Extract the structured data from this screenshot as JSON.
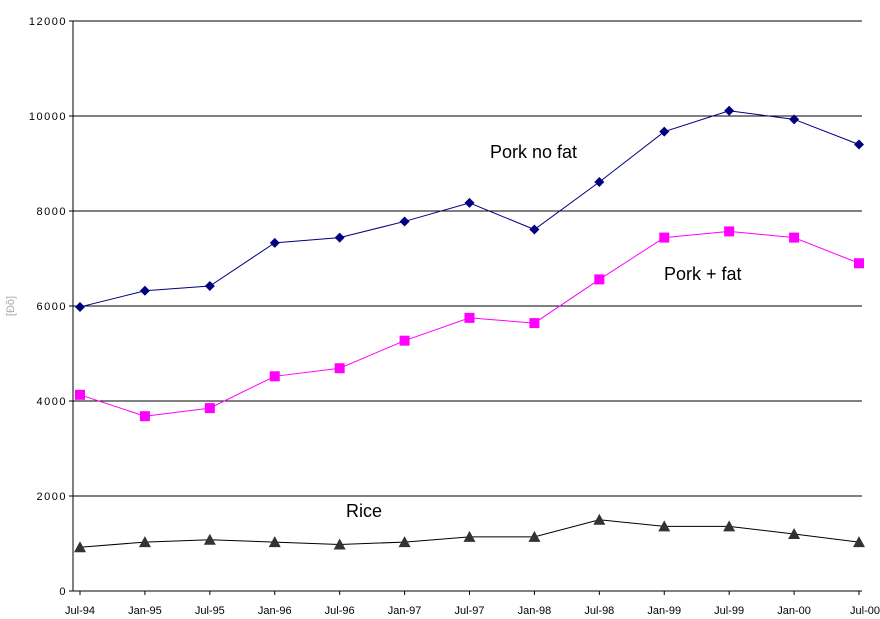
{
  "chart_data": {
    "type": "line",
    "categories": [
      "Jul-94",
      "Jan-95",
      "Jul-95",
      "Jan-96",
      "Jul-96",
      "Jan-97",
      "Jul-97",
      "Jan-98",
      "Jul-98",
      "Jan-99",
      "Jul-99",
      "Jan-00",
      "Jul-00"
    ],
    "xlabel": "",
    "ylabel": "[Đồ]",
    "ylim": [
      0,
      12000
    ],
    "yticks": [
      0,
      2000,
      4000,
      6000,
      8000,
      10000,
      12000
    ],
    "ytick_labels": [
      "0",
      "2000",
      "4000",
      "6000",
      "8000",
      "10000",
      "12000"
    ],
    "grid": "horizontal",
    "series": [
      {
        "name": "Pork no fat",
        "color": "#000080",
        "marker": "diamond",
        "values": [
          5980,
          6320,
          6420,
          7330,
          7440,
          7780,
          8170,
          7610,
          8610,
          9670,
          10110,
          9930,
          9400
        ]
      },
      {
        "name": "Pork + fat",
        "color": "#ff00ff",
        "marker": "square",
        "values": [
          4130,
          3680,
          3850,
          4520,
          4690,
          5270,
          5750,
          5640,
          6560,
          7440,
          7570,
          7440,
          6900
        ]
      },
      {
        "name": "Rice",
        "color": "#000000",
        "marker": "triangle",
        "marker_color": "#333333",
        "values": [
          920,
          1030,
          1080,
          1030,
          980,
          1030,
          1140,
          1140,
          1500,
          1360,
          1360,
          1200,
          1030
        ]
      }
    ]
  }
}
